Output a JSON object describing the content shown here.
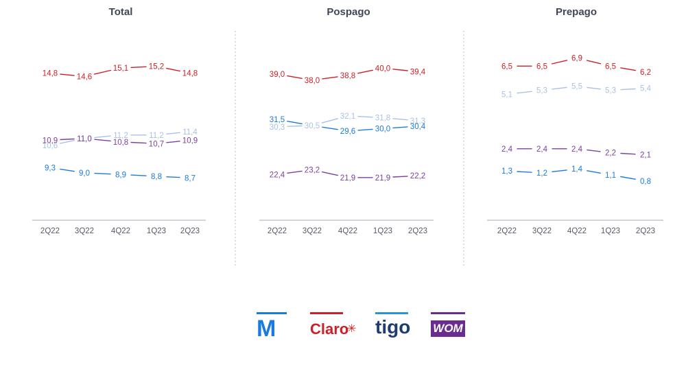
{
  "chart_data": [
    {
      "type": "line",
      "title": "Total",
      "categories": [
        "2Q22",
        "3Q22",
        "4Q22",
        "1Q23",
        "2Q23"
      ],
      "ylim": [
        7,
        16.5
      ],
      "grid": false,
      "series": [
        {
          "name": "Claro",
          "color": "#cc1f27",
          "values": [
            14.8,
            14.6,
            15.1,
            15.2,
            14.8
          ],
          "labels": [
            "14,8",
            "14,6",
            "15,1",
            "15,2",
            "14,8"
          ]
        },
        {
          "name": "Tigo",
          "color": "#a9c2e2",
          "values": [
            10.6,
            11.0,
            11.2,
            11.2,
            11.4
          ],
          "labels": [
            "10,6",
            "11,0",
            "11,2",
            "11,2",
            "11,4"
          ]
        },
        {
          "name": "WOM",
          "color": "#7b3fa0",
          "values": [
            10.9,
            11.0,
            10.8,
            10.7,
            10.9
          ],
          "labels": [
            "10,9",
            "11,0",
            "10,8",
            "10,7",
            "10,9"
          ]
        },
        {
          "name": "Movistar",
          "color": "#1b7ae0",
          "values": [
            9.3,
            9.0,
            8.9,
            8.8,
            8.7
          ],
          "labels": [
            "9,3",
            "9,0",
            "8,9",
            "8,8",
            "8,7"
          ]
        }
      ]
    },
    {
      "type": "line",
      "title": "Pospago",
      "categories": [
        "2Q22",
        "3Q22",
        "4Q22",
        "1Q23",
        "2Q23"
      ],
      "ylim": [
        17,
        44
      ],
      "grid": false,
      "series": [
        {
          "name": "Claro",
          "color": "#cc1f27",
          "values": [
            39.0,
            38.0,
            38.8,
            40.0,
            39.4
          ],
          "labels": [
            "39,0",
            "38,0",
            "38,8",
            "40,0",
            "39,4"
          ]
        },
        {
          "name": "Tigo",
          "color": "#a9c2e2",
          "values": [
            30.3,
            30.5,
            32.1,
            31.8,
            31.3
          ],
          "labels": [
            "30,3",
            "30,5",
            "32,1",
            "31,8",
            "31,3"
          ]
        },
        {
          "name": "Movistar",
          "color": "#1b7ae0",
          "values": [
            31.5,
            30.5,
            29.6,
            30.0,
            30.4
          ],
          "labels": [
            "31,5",
            "",
            "29,6",
            "30,0",
            "30,4"
          ]
        },
        {
          "name": "WOM",
          "color": "#7b3fa0",
          "values": [
            22.4,
            23.2,
            21.9,
            21.9,
            22.2
          ],
          "labels": [
            "22,4",
            "23,2",
            "21,9",
            "21,9",
            "22,2"
          ]
        }
      ]
    },
    {
      "type": "line",
      "title": "Prepago",
      "categories": [
        "2Q22",
        "3Q22",
        "4Q22",
        "1Q23",
        "2Q23"
      ],
      "ylim": [
        -0.5,
        7.6
      ],
      "grid": false,
      "series": [
        {
          "name": "Claro",
          "color": "#cc1f27",
          "values": [
            6.5,
            6.5,
            6.9,
            6.5,
            6.2
          ],
          "labels": [
            "6,5",
            "6,5",
            "6,9",
            "6,5",
            "6,2"
          ]
        },
        {
          "name": "Tigo",
          "color": "#a9c2e2",
          "values": [
            5.1,
            5.3,
            5.5,
            5.3,
            5.4
          ],
          "labels": [
            "5,1",
            "5,3",
            "5,5",
            "5,3",
            "5,4"
          ]
        },
        {
          "name": "WOM",
          "color": "#7b3fa0",
          "values": [
            2.4,
            2.4,
            2.4,
            2.2,
            2.1
          ],
          "labels": [
            "2,4",
            "2,4",
            "2,4",
            "2,2",
            "2,1"
          ]
        },
        {
          "name": "Movistar",
          "color": "#1b7ae0",
          "values": [
            1.3,
            1.2,
            1.4,
            1.1,
            0.8
          ],
          "labels": [
            "1,3",
            "1,2",
            "1,4",
            "1,1",
            "0,8"
          ]
        }
      ]
    }
  ],
  "legend": [
    {
      "name": "Movistar",
      "text": "M",
      "color": "#1b7ae0"
    },
    {
      "name": "Claro",
      "text": "Claro",
      "color": "#cc1f27"
    },
    {
      "name": "Tigo",
      "text": "tigo",
      "color": "#1e3c72",
      "bar_color": "#2a95d5"
    },
    {
      "name": "WOM",
      "text": "WOM",
      "color": "#ffffff",
      "bg_color": "#6a2c91"
    }
  ]
}
